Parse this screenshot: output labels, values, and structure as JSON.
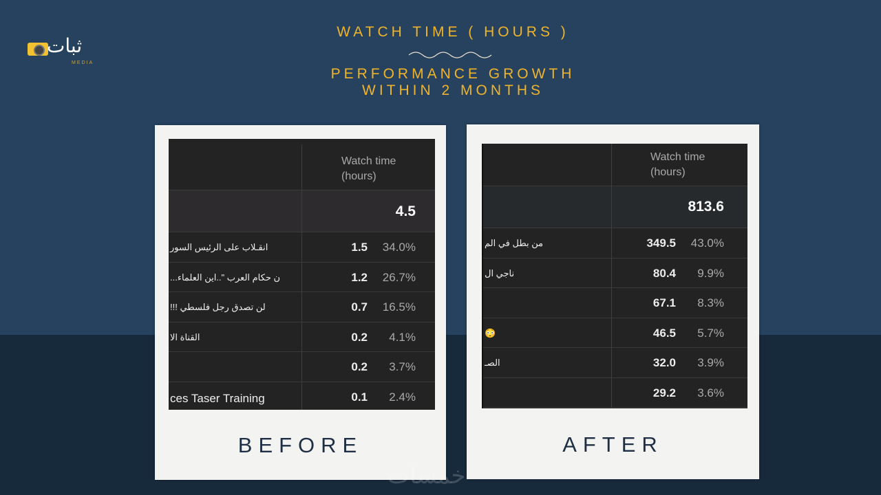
{
  "logo": {
    "text": "ثبات",
    "sub": "MEDIA"
  },
  "header": {
    "title": "WATCH TIME ( HOURS )",
    "subtitle_line1": "PERFORMANCE GROWTH",
    "subtitle_line2": "WITHIN 2 MONTHS"
  },
  "before": {
    "label": "BEFORE",
    "column_header_1": "Watch time",
    "column_header_2": "(hours)",
    "total": "4.5",
    "rows": [
      {
        "name": "انقـلاب على الرئيس السور",
        "value": "1.5",
        "pct": "34.0%"
      },
      {
        "name": "...ن حكام العرب \"..اين العلماء",
        "value": "1.2",
        "pct": "26.7%"
      },
      {
        "name": "!!! لن تصدق رجل فلسطي",
        "value": "0.7",
        "pct": "16.5%"
      },
      {
        "name": "القناة الا",
        "value": "0.2",
        "pct": "4.1%"
      },
      {
        "name": "",
        "value": "0.2",
        "pct": "3.7%"
      },
      {
        "name": "ces Taser Training",
        "value": "0.1",
        "pct": "2.4%"
      }
    ]
  },
  "after": {
    "label": "AFTER",
    "column_header_1": "Watch time",
    "column_header_2": "(hours)",
    "total": "813.6",
    "rows": [
      {
        "name": "من بطل في الم",
        "value": "349.5",
        "pct": "43.0%"
      },
      {
        "name": "ناجي ال",
        "value": "80.4",
        "pct": "9.9%"
      },
      {
        "name": "",
        "value": "67.1",
        "pct": "8.3%"
      },
      {
        "name": "😳",
        "value": "46.5",
        "pct": "5.7%"
      },
      {
        "name": "الصـ",
        "value": "32.0",
        "pct": "3.9%"
      },
      {
        "name": "",
        "value": "29.2",
        "pct": "3.6%"
      }
    ]
  },
  "watermark": "خمسات",
  "colors": {
    "accent": "#f0b429",
    "background": "#26425f",
    "band": "#172a3c",
    "table": "#232323"
  }
}
